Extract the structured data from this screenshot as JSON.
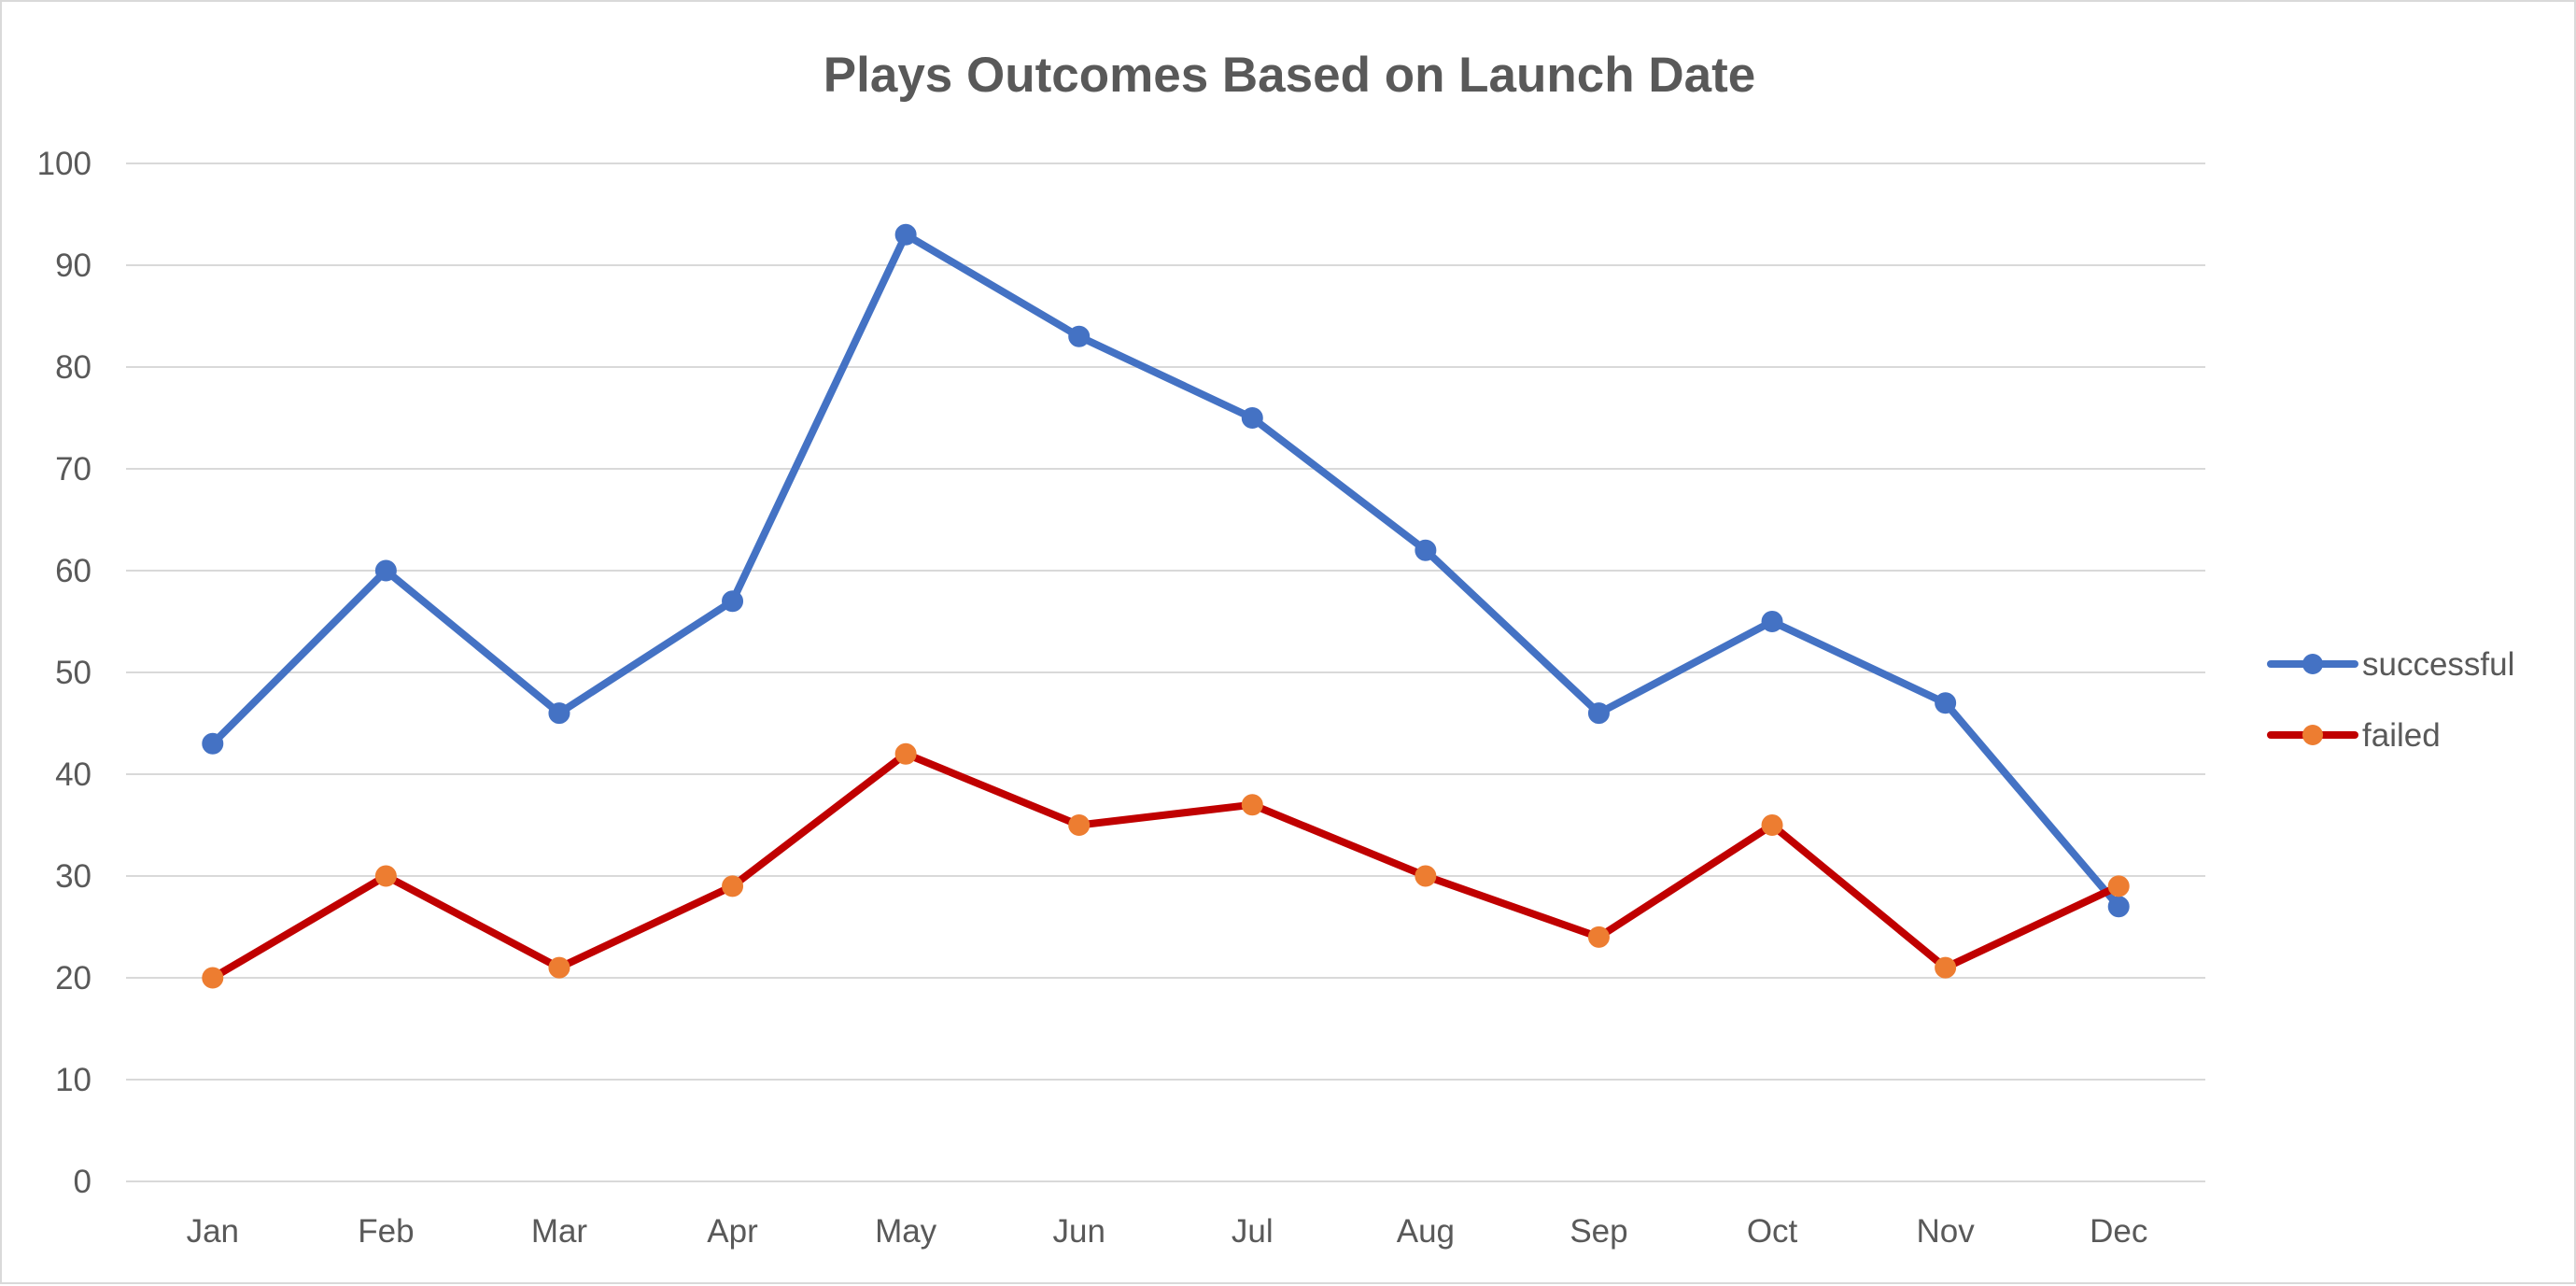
{
  "chart_data": {
    "type": "line",
    "title": "Plays Outcomes Based on Launch Date",
    "xlabel": "",
    "ylabel": "",
    "categories": [
      "Jan",
      "Feb",
      "Mar",
      "Apr",
      "May",
      "Jun",
      "Jul",
      "Aug",
      "Sep",
      "Oct",
      "Nov",
      "Dec"
    ],
    "ylim": [
      0,
      100
    ],
    "yticks": [
      0,
      10,
      20,
      30,
      40,
      50,
      60,
      70,
      80,
      90,
      100
    ],
    "grid": true,
    "legend_position": "right",
    "series": [
      {
        "name": "successful",
        "color": "#4472c4",
        "marker_color": "#4472c4",
        "values": [
          43,
          60,
          46,
          57,
          93,
          83,
          75,
          62,
          46,
          55,
          47,
          27
        ]
      },
      {
        "name": "failed",
        "color": "#c00000",
        "marker_color": "#ed7d31",
        "values": [
          20,
          30,
          21,
          29,
          42,
          35,
          37,
          30,
          24,
          35,
          21,
          29
        ]
      }
    ]
  }
}
